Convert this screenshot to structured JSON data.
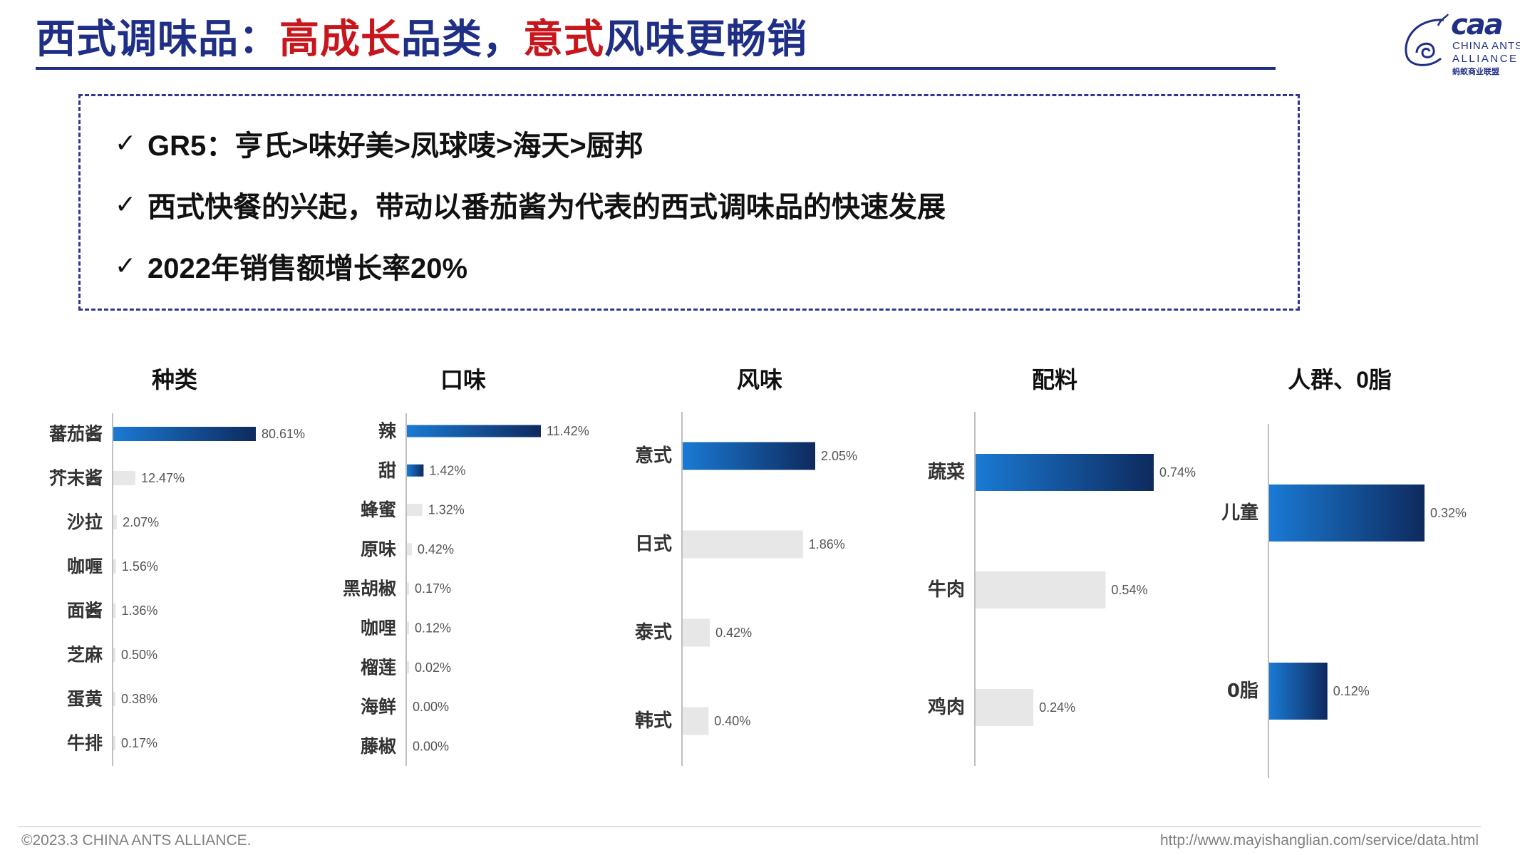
{
  "header": {
    "title_part1": "西式调味品：",
    "title_part2": "高成长",
    "title_part3": "品类，",
    "title_part4": "意式",
    "title_part5": "风味更畅销"
  },
  "logo": {
    "abbr": "caa",
    "line1": "CHINA ANTS",
    "line2": "ALLIANCE",
    "cn": "蚂蚁商业联盟"
  },
  "summary": {
    "check_icon": "✓",
    "bullets": [
      "GR5：亨氏>味好美>凤球唛>海天>厨邦",
      "西式快餐的兴起，带动以番茄酱为代表的西式调味品的快速发展",
      "2022年销售额增长率20%"
    ]
  },
  "colors": {
    "title_blue": "#1f2f86",
    "title_red": "#c8161d",
    "bar_gradient_start": "#1a7ad4",
    "bar_gradient_end": "#0e2a5e",
    "bar_grey": "#e7e7e7",
    "axis": "#bfbfbf"
  },
  "chart_data": [
    {
      "type": "bar",
      "orientation": "horizontal",
      "title": "种类",
      "categories": [
        "蕃茄酱",
        "芥末酱",
        "沙拉",
        "咖喱",
        "面酱",
        "芝麻",
        "蛋黄",
        "牛排"
      ],
      "values": [
        80.61,
        12.47,
        2.07,
        1.56,
        1.36,
        0.5,
        0.38,
        0.17
      ],
      "labels": [
        "80.61%",
        "12.47%",
        "2.07%",
        "1.56%",
        "1.36%",
        "0.50%",
        "0.38%",
        "0.17%"
      ],
      "highlight": [
        0
      ]
    },
    {
      "type": "bar",
      "orientation": "horizontal",
      "title": "口味",
      "categories": [
        "辣",
        "甜",
        "蜂蜜",
        "原味",
        "黑胡椒",
        "咖哩",
        "榴莲",
        "海鲜",
        "藤椒"
      ],
      "values": [
        11.42,
        1.42,
        1.32,
        0.42,
        0.17,
        0.12,
        0.02,
        0.0,
        0.0
      ],
      "labels": [
        "11.42%",
        "1.42%",
        "1.32%",
        "0.42%",
        "0.17%",
        "0.12%",
        "0.02%",
        "0.00%",
        "0.00%"
      ],
      "highlight": [
        0,
        1
      ]
    },
    {
      "type": "bar",
      "orientation": "horizontal",
      "title": "风味",
      "categories": [
        "意式",
        "日式",
        "泰式",
        "韩式"
      ],
      "values": [
        2.05,
        1.86,
        0.42,
        0.4
      ],
      "labels": [
        "2.05%",
        "1.86%",
        "0.42%",
        "0.40%"
      ],
      "highlight": [
        0
      ]
    },
    {
      "type": "bar",
      "orientation": "horizontal",
      "title": "配料",
      "categories": [
        "蔬菜",
        "牛肉",
        "鸡肉"
      ],
      "values": [
        0.74,
        0.54,
        0.24
      ],
      "labels": [
        "0.74%",
        "0.54%",
        "0.24%"
      ],
      "highlight": [
        0
      ]
    },
    {
      "type": "bar",
      "orientation": "horizontal",
      "title": "人群、0脂",
      "categories": [
        "儿童",
        "0脂"
      ],
      "values": [
        0.32,
        0.12
      ],
      "labels": [
        "0.32%",
        "0.12%"
      ],
      "highlight": [
        0,
        1
      ]
    }
  ],
  "footer": {
    "left": "©2023.3 CHINA ANTS ALLIANCE.",
    "right": "http://www.mayishanglian.com/service/data.html"
  }
}
